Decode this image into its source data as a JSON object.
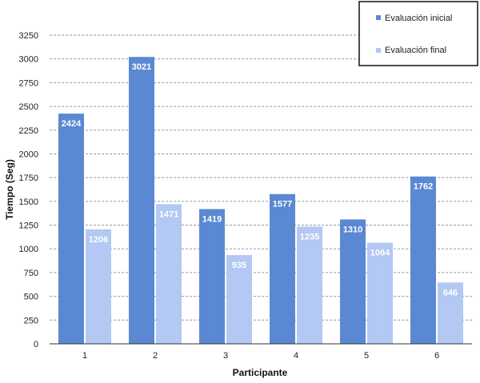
{
  "chart_data": {
    "type": "bar",
    "categories": [
      "1",
      "2",
      "3",
      "4",
      "5",
      "6"
    ],
    "series": [
      {
        "name": "Evaluación inicial",
        "color": "#5b88d2",
        "values": [
          2424,
          3021,
          1419,
          1577,
          1310,
          1762
        ]
      },
      {
        "name": "Evaluación final",
        "color": "#b3c8f3",
        "values": [
          1206,
          1471,
          935,
          1235,
          1064,
          646
        ]
      }
    ],
    "title": "",
    "xlabel": "Participante",
    "ylabel": "Tiempo (Seg)",
    "ylim": [
      0,
      3250
    ],
    "yticks": [
      0,
      250,
      500,
      750,
      1000,
      1250,
      1500,
      1750,
      2000,
      2250,
      2500,
      2750,
      3000,
      3250
    ],
    "grid": true,
    "legend_position": "top-right"
  }
}
